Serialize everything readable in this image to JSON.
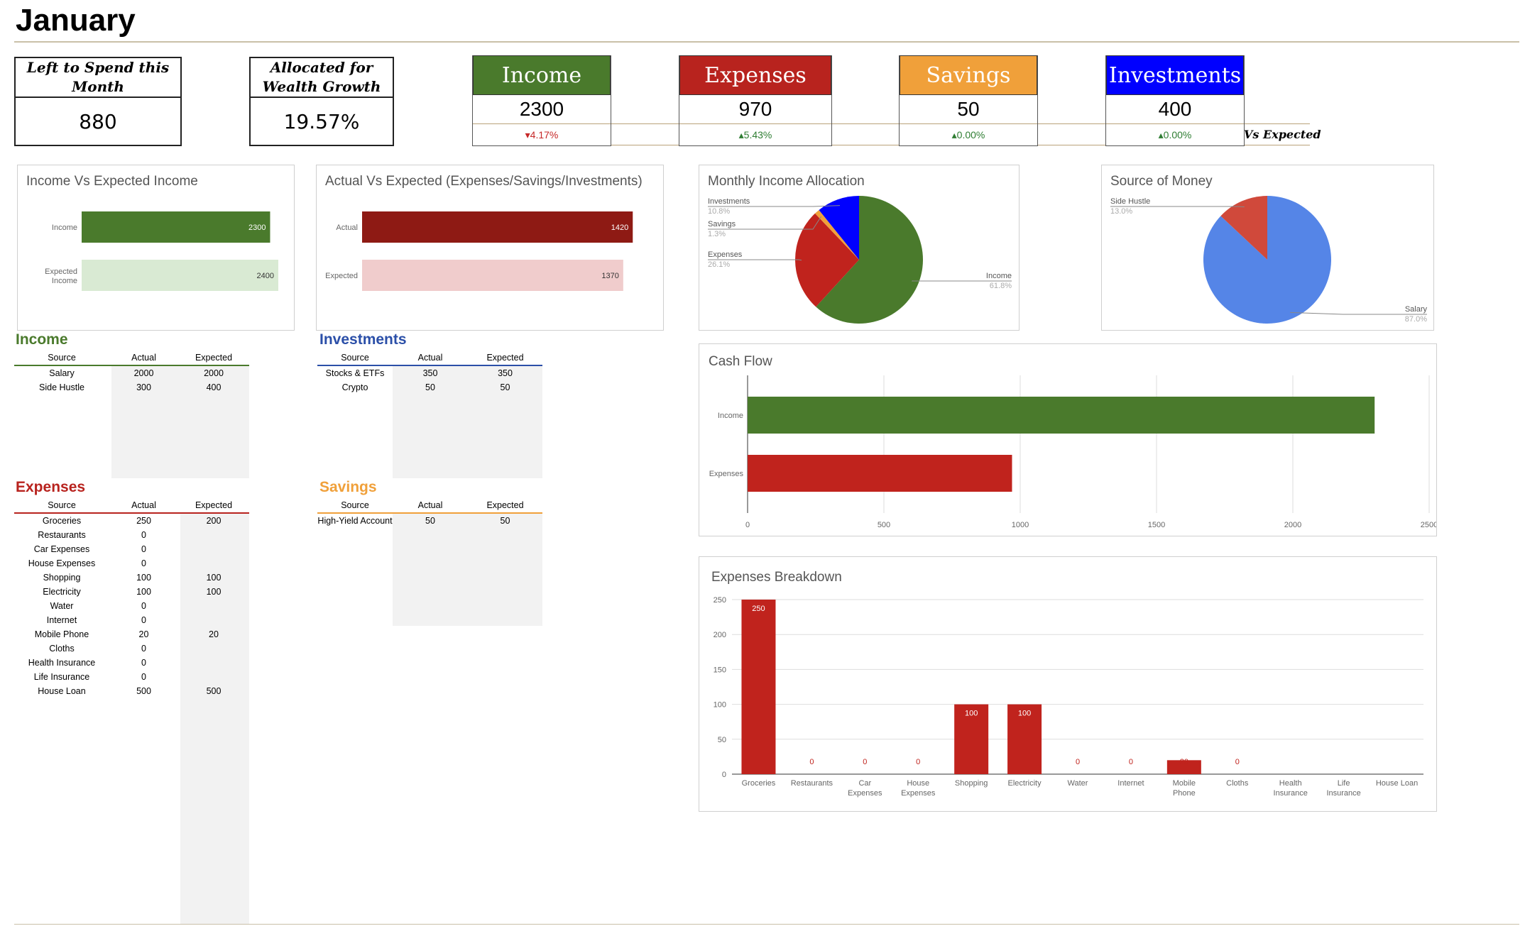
{
  "page": {
    "title": "January"
  },
  "summary": {
    "left_to_spend": {
      "label": "Left to Spend this Month",
      "value": "880"
    },
    "allocated_wealth": {
      "label": "Allocated for Wealth Growth",
      "value": "19.57%"
    }
  },
  "kpis": [
    {
      "label": "Income",
      "value": "2300",
      "change": "▾4.17%",
      "trend": "down",
      "color": "#4a7a2c"
    },
    {
      "label": "Expenses",
      "value": "970",
      "change": "▴5.43%",
      "trend": "up",
      "color": "#b8231e"
    },
    {
      "label": "Savings",
      "value": "50",
      "change": "▴0.00%",
      "trend": "up",
      "color": "#f0a03a"
    },
    {
      "label": "Investments",
      "value": "400",
      "change": "▴0.00%",
      "trend": "up",
      "color": "#0000ff"
    }
  ],
  "vs_expected_label": "Vs Expected",
  "charts": {
    "income_vs_expected": {
      "title": "Income Vs Expected Income",
      "chart_data": {
        "type": "bar",
        "orientation": "horizontal",
        "categories": [
          "Income",
          "Expected Income"
        ],
        "values": [
          2300,
          2400
        ],
        "colors": [
          "#4a7a2c",
          "#d9ead3"
        ],
        "xlim": [
          0,
          2400
        ]
      }
    },
    "actual_vs_expected": {
      "title": "Actual Vs Expected (Expenses/Savings/Investments)",
      "chart_data": {
        "type": "bar",
        "orientation": "horizontal",
        "categories": [
          "Actual",
          "Expected"
        ],
        "values": [
          1420,
          1370
        ],
        "colors": [
          "#8e1a14",
          "#f0cccc"
        ],
        "xlim": [
          0,
          1460
        ]
      }
    },
    "monthly_allocation": {
      "title": "Monthly Income Allocation",
      "chart_data": {
        "type": "pie",
        "slices": [
          {
            "label": "Income",
            "pct": "61.8%",
            "value": 61.8,
            "color": "#4a7a2c"
          },
          {
            "label": "Expenses",
            "pct": "26.1%",
            "value": 26.1,
            "color": "#c0231d"
          },
          {
            "label": "Savings",
            "pct": "1.3%",
            "value": 1.3,
            "color": "#f0a03a"
          },
          {
            "label": "Investments",
            "pct": "10.8%",
            "value": 10.8,
            "color": "#0000ff"
          }
        ]
      }
    },
    "source_of_money": {
      "title": "Source of Money",
      "chart_data": {
        "type": "pie",
        "slices": [
          {
            "label": "Salary",
            "pct": "87.0%",
            "value": 87.0,
            "color": "#5585e7"
          },
          {
            "label": "Side Hustle",
            "pct": "13.0%",
            "value": 13.0,
            "color": "#d0493b"
          }
        ]
      }
    },
    "cash_flow": {
      "title": "Cash Flow",
      "chart_data": {
        "type": "bar",
        "orientation": "horizontal",
        "categories": [
          "Income",
          "Expenses"
        ],
        "values": [
          2300,
          970
        ],
        "colors": [
          "#4a7a2c",
          "#c0231d"
        ],
        "xlim": [
          0,
          2500
        ],
        "ticks": [
          "0",
          "500",
          "1000",
          "1500",
          "2000",
          "2500"
        ]
      }
    },
    "expenses_breakdown": {
      "title": "Expenses Breakdown",
      "chart_data": {
        "type": "bar",
        "categories": [
          "Groceries",
          "Restaurants",
          "Car Expenses",
          "House Expenses",
          "Shopping",
          "Electricity",
          "Water",
          "Internet",
          "Mobile Phone",
          "Cloths",
          "Health Insurance",
          "Life Insurance",
          "House Loan"
        ],
        "values": [
          250,
          0,
          0,
          0,
          100,
          100,
          0,
          0,
          20,
          0,
          null,
          null,
          null
        ],
        "labels": [
          "250",
          "0",
          "0",
          "0",
          "100",
          "100",
          "0",
          "0",
          "20",
          "0",
          "",
          "",
          ""
        ],
        "ylim": [
          0,
          250
        ],
        "ticks": [
          "0",
          "50",
          "100",
          "150",
          "200",
          "250"
        ],
        "color": "#c0231d"
      }
    }
  },
  "tables": {
    "income": {
      "title": "Income",
      "color": "#4a7a2c",
      "headers": [
        "Source",
        "Actual",
        "Expected"
      ],
      "rows": [
        [
          "Salary",
          "2000",
          "2000"
        ],
        [
          "Side Hustle",
          "300",
          "400"
        ]
      ]
    },
    "investments": {
      "title": "Investments",
      "color": "#2b4fa8",
      "headers": [
        "Source",
        "Actual",
        "Expected"
      ],
      "rows": [
        [
          "Stocks & ETFs",
          "350",
          "350"
        ],
        [
          "Crypto",
          "50",
          "50"
        ]
      ]
    },
    "expenses": {
      "title": "Expenses",
      "color": "#b8231e",
      "headers": [
        "Source",
        "Actual",
        "Expected"
      ],
      "rows": [
        [
          "Groceries",
          "250",
          "200"
        ],
        [
          "Restaurants",
          "0",
          ""
        ],
        [
          "Car Expenses",
          "0",
          ""
        ],
        [
          "House Expenses",
          "0",
          ""
        ],
        [
          "Shopping",
          "100",
          "100"
        ],
        [
          "Electricity",
          "100",
          "100"
        ],
        [
          "Water",
          "0",
          ""
        ],
        [
          "Internet",
          "0",
          ""
        ],
        [
          "Mobile Phone",
          "20",
          "20"
        ],
        [
          "Cloths",
          "0",
          ""
        ],
        [
          "Health Insurance",
          "0",
          ""
        ],
        [
          "Life Insurance",
          "0",
          ""
        ],
        [
          "House Loan",
          "500",
          "500"
        ]
      ]
    },
    "savings": {
      "title": "Savings",
      "color": "#f0a03a",
      "headers": [
        "Source",
        "Actual",
        "Expected"
      ],
      "rows": [
        [
          "High-Yield Account",
          "50",
          "50"
        ]
      ]
    }
  }
}
